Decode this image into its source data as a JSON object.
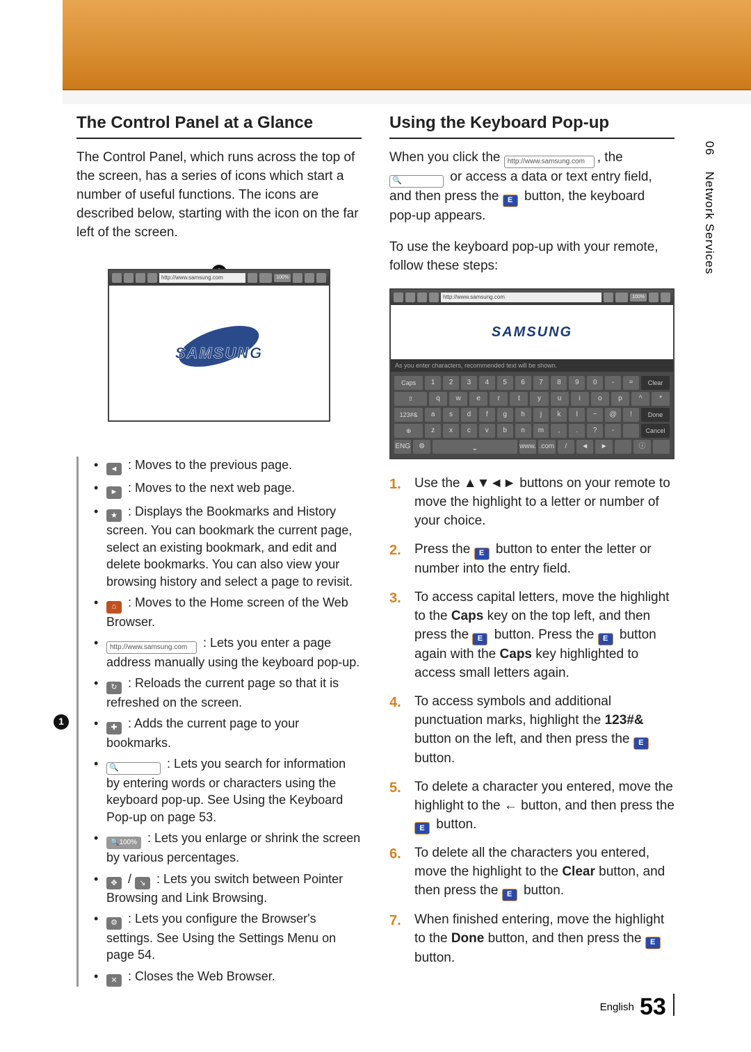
{
  "sideTab": {
    "chapter": "06",
    "title": "Network Services"
  },
  "footer": {
    "lang": "English",
    "page": "53"
  },
  "left": {
    "heading": "The Control Panel at a Glance",
    "intro": "The Control Panel, which runs across the top of the screen, has a series of icons which start a number of useful functions. The icons are described below, starting with the icon on the far left of the screen.",
    "calloutNum": "1",
    "url": "http://www.samsung.com",
    "zoom": "100%",
    "logo": "SAMSUNG",
    "list": {
      "back": " : Moves to the previous page.",
      "fwd": " : Moves to the next web page.",
      "bm": " : Displays the Bookmarks and History screen. You can bookmark the current page, select an existing bookmark, and edit and delete bookmarks. You can also view your browsing history and select a page to revisit.",
      "home": " : Moves to the Home screen of the Web Browser.",
      "urlPre": "http://www.samsung.com",
      "url": " : Lets you enter a page address manually using the keyboard pop-up.",
      "reload": " : Reloads the current page so that it is refreshed on the screen.",
      "addbm": " : Adds the current page to your bookmarks.",
      "search": " : Lets you search for information by entering words or characters using the keyboard pop-up. See Using the Keyboard Pop-up on page 53.",
      "zoomPre": "100%",
      "zoom": " : Lets you enlarge or shrink the screen by various percentages.",
      "ptr": " : Lets you switch between Pointer Browsing and Link Browsing.",
      "settings": " : Lets you configure the Browser's settings. See Using the Settings Menu on page 54.",
      "close": " : Closes the Web Browser."
    }
  },
  "right": {
    "heading": "Using the Keyboard Pop-up",
    "intro": {
      "t1": "When you click the ",
      "urlChip": "http://www.samsung.com",
      "t2": ", the ",
      "t3": " or access a data or text entry field, and then press the ",
      "enter": "E",
      "t4": " button, the keyboard pop-up appears.",
      "t5": "To use the keyboard pop-up with your remote, follow these steps:"
    },
    "kb": {
      "url": "http://www.samsung.com",
      "zoom": "100%",
      "hint": "As you enter characters, recommended text will be shown.",
      "row1left": "Caps",
      "row1": [
        "1",
        "2",
        "3",
        "4",
        "5",
        "6",
        "7",
        "8",
        "9",
        "0",
        "-",
        "="
      ],
      "row1right": "Clear",
      "row2left": "⇧",
      "row2": [
        "q",
        "w",
        "e",
        "r",
        "t",
        "y",
        "u",
        "i",
        "o",
        "p",
        "^",
        "*"
      ],
      "row3left": "123#&",
      "row3": [
        "a",
        "s",
        "d",
        "f",
        "g",
        "h",
        "j",
        "k",
        "l",
        "~",
        "@",
        "!"
      ],
      "row3right": "Done",
      "row4left": "⊕",
      "row4": [
        "z",
        "x",
        "c",
        "v",
        "b",
        "n",
        "m",
        ",",
        ".",
        "?",
        "-",
        " "
      ],
      "row4right": "Cancel",
      "row5": [
        "ENG",
        "⚙",
        "⎵",
        "www.",
        ".com",
        "/",
        "◄",
        "►",
        " ",
        "ⓘ",
        " "
      ]
    },
    "steps": {
      "s1a": "Use the ▲▼◄► buttons on your remote to move the highlight to a letter or number of your choice.",
      "s2a": "Press the ",
      "s2b": " button to enter the letter or number into the entry field.",
      "s3a": "To access capital letters, move the highlight to the ",
      "s3caps1": "Caps",
      "s3b": " key on the top left, and then press the ",
      "s3c": " button. Press the ",
      "s3d": " button again with the ",
      "s3caps2": "Caps",
      "s3e": " key highlighted to access small letters again.",
      "s4a": "To access symbols and additional punctuation marks, highlight the ",
      "s4b": "123#&",
      "s4c": " button on the left, and then press the ",
      "s4d": " button.",
      "s5a": "To delete a character you entered, move the highlight to the ",
      "s5b": "←",
      "s5c": " button, and then press the ",
      "s5d": " button.",
      "s6a": "To delete all the characters you entered, move the highlight to the ",
      "s6b": "Clear",
      "s6c": " button, and then press the ",
      "s6d": " button.",
      "s7a": "When finished entering, move the highlight to the ",
      "s7b": "Done",
      "s7c": " button, and then press the ",
      "s7d": " button."
    }
  }
}
